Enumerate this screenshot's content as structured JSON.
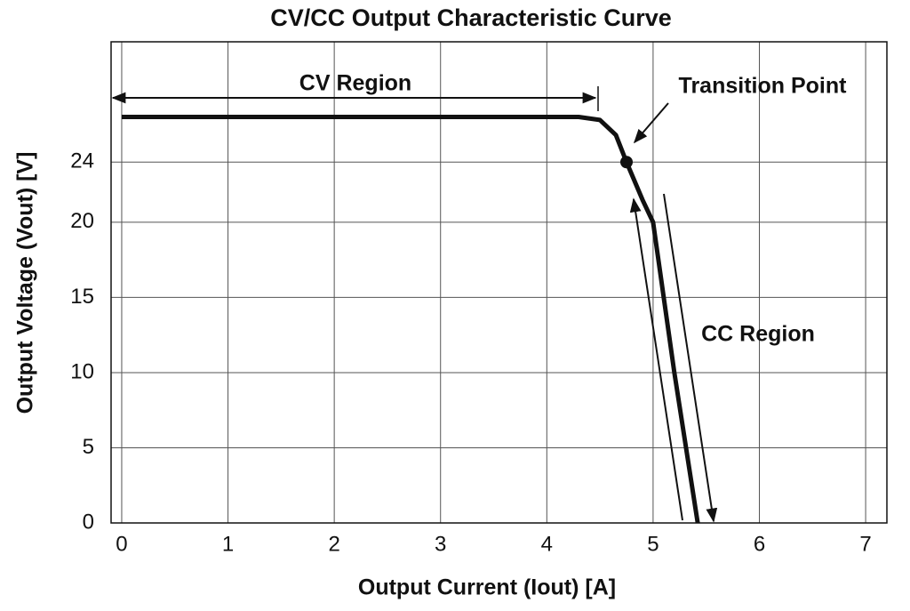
{
  "chart_data": {
    "type": "line",
    "title": "CV/CC Output Characteristic Curve",
    "x_label": "Output Current (Iout) [A]",
    "y_label": "Output Voltage (Vout) [V]",
    "xlim": [
      -0.1,
      7.2
    ],
    "xticks": [
      0,
      1,
      2,
      3,
      4,
      5,
      6,
      7
    ],
    "ylim": [
      0,
      32
    ],
    "yticks": [
      0,
      5,
      10,
      15,
      20,
      24
    ],
    "grid": true,
    "x": [
      0,
      4.3,
      4.5,
      4.65,
      4.75,
      4.9,
      5.0,
      5.2,
      5.42
    ],
    "series": [
      {
        "color": "#111111",
        "values": [
          27,
          27,
          26.8,
          25.8,
          24,
          21.5,
          20,
          10,
          0
        ]
      }
    ],
    "transition_point": {
      "label": "Transition Point",
      "x": 4.75,
      "y": 24
    },
    "annotations": {
      "cv_region": "CV Region",
      "cc_region": "CC Region"
    }
  }
}
